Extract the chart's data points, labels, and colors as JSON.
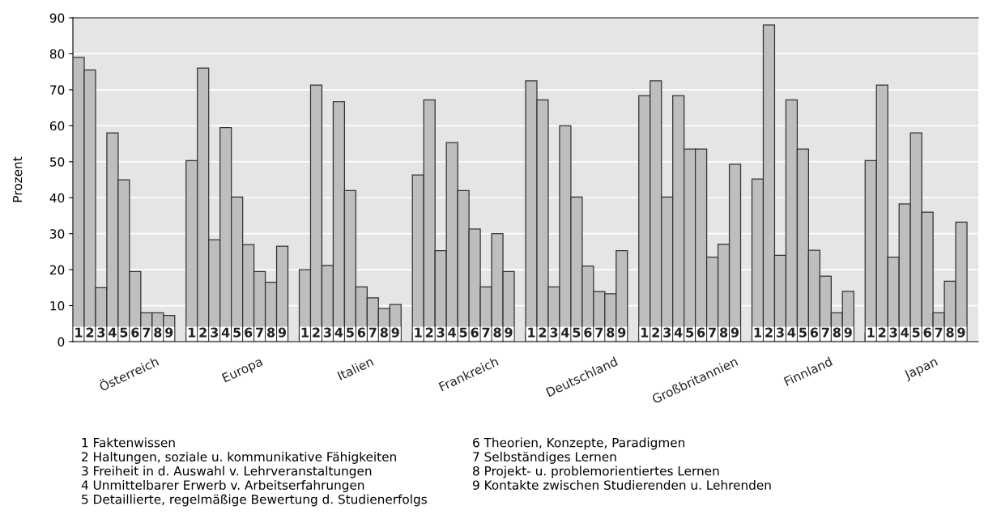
{
  "chart_data": {
    "type": "bar",
    "ylabel": "Prozent",
    "categories": [
      "Österreich",
      "Europa",
      "Italien",
      "Frankreich",
      "Deutschland",
      "Großbritannien",
      "Finnland",
      "Japan"
    ],
    "series": [
      {
        "name": "1",
        "color": "#bdbec0",
        "values": [
          79,
          50.3,
          20,
          46.3,
          72.5,
          68.4,
          45.2,
          50.3
        ]
      },
      {
        "name": "2",
        "color": "#bdbec0",
        "values": [
          75.5,
          76,
          71.3,
          67.2,
          67.2,
          72.5,
          88,
          71.3
        ]
      },
      {
        "name": "3",
        "color": "#bdbec0",
        "values": [
          15,
          28.3,
          21.2,
          25.3,
          15.2,
          40.2,
          24,
          23.5
        ]
      },
      {
        "name": "4",
        "color": "#bdbec0",
        "values": [
          58,
          59.5,
          66.7,
          55.3,
          60,
          68.4,
          67.2,
          38.3
        ]
      },
      {
        "name": "5",
        "color": "#bdbec0",
        "values": [
          45,
          40.2,
          42,
          42,
          40.2,
          53.5,
          53.5,
          58
        ]
      },
      {
        "name": "6",
        "color": "#bdbec0",
        "values": [
          19.5,
          27,
          15.2,
          31.3,
          21,
          53.5,
          25.4,
          36
        ]
      },
      {
        "name": "7",
        "color": "#bdbec0",
        "values": [
          8,
          19.5,
          12.2,
          15.2,
          13.9,
          23.5,
          18.2,
          8
        ]
      },
      {
        "name": "8",
        "color": "#bdbec0",
        "values": [
          8,
          16.5,
          9.2,
          30,
          13.3,
          27.1,
          8,
          16.8
        ]
      },
      {
        "name": "9",
        "color": "#bdbec0",
        "values": [
          7.3,
          26.5,
          10.3,
          19.5,
          25.3,
          49.3,
          14,
          33.2
        ]
      }
    ],
    "annotations": [
      "1 Faktenwissen",
      "2 Haltungen, soziale u. kommunikative Fähigkeiten",
      "3 Freiheit in d. Auswahl v. Lehrveranstaltungen",
      "4 Unmittelbarer Erwerb v. Arbeitserfahrungen",
      "5 Detaillierte, regelmäßige Bewertung d. Studienerfolgs",
      "6 Theorien, Konzepte, Paradigmen",
      "7 Selbständiges Lernen",
      "8 Projekt- u. problemorientiertes Lernen",
      "9 Kontakte zwischen Studierenden u. Lehrenden"
    ],
    "ylim": [
      0,
      90
    ],
    "yticks": [
      0,
      10,
      20,
      30,
      40,
      50,
      60,
      70,
      80,
      90
    ],
    "grid": "y"
  }
}
